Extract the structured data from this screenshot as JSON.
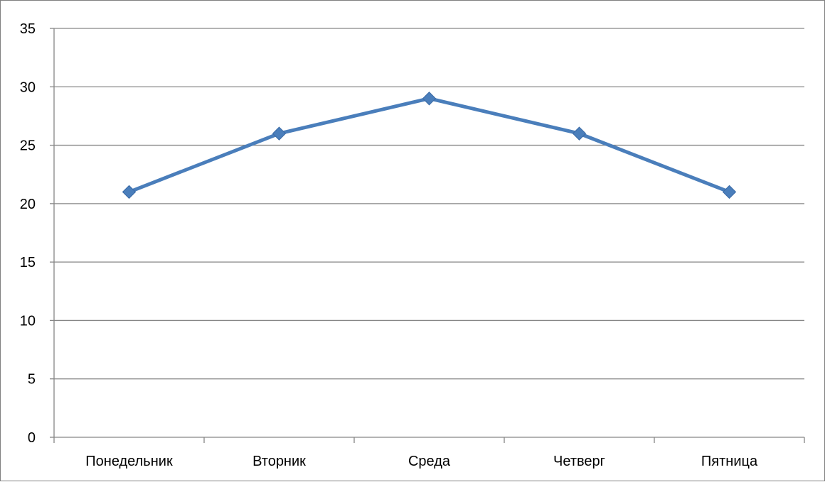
{
  "chart_data": {
    "type": "line",
    "categories": [
      "Понедельник",
      "Вторник",
      "Среда",
      "Четверг",
      "Пятница"
    ],
    "series": [
      {
        "values": [
          21,
          26,
          29,
          26,
          21
        ]
      }
    ],
    "title": "",
    "xlabel": "",
    "ylabel": "",
    "ylim": [
      0,
      35
    ],
    "y_ticks": [
      0,
      5,
      10,
      15,
      20,
      25,
      30,
      35
    ],
    "grid": "horizontal",
    "legend": "none",
    "marker": "diamond",
    "line_color": "#4a7ebb",
    "grid_color": "#868686"
  }
}
